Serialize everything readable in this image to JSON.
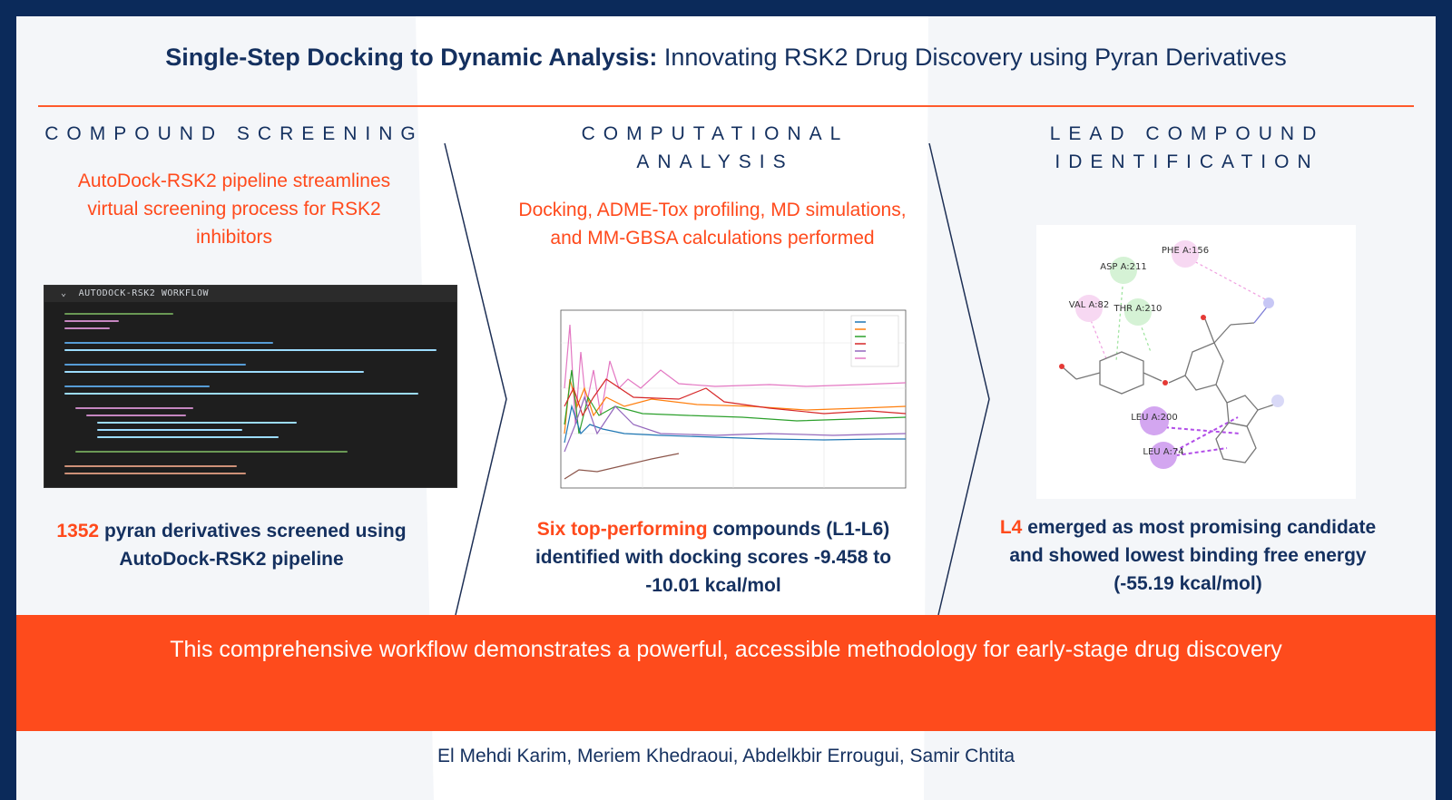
{
  "title": {
    "bold": "Single-Step Docking to Dynamic Analysis:",
    "rest": " Innovating RSK2 Drug Discovery using Pyran Derivatives"
  },
  "columns": [
    {
      "heading": "COMPOUND SCREENING",
      "description": "AutoDock-RSK2 pipeline streamlines virtual screening process for RSK2 inhibitors",
      "result_highlight": "1352",
      "result_rest": " pyran derivatives screened using AutoDock-RSK2 pipeline"
    },
    {
      "heading": "COMPUTATIONAL ANALYSIS",
      "description": "Docking, ADME-Tox profiling, MD simulations, and MM-GBSA calculations performed",
      "result_highlight": "Six top-performing",
      "result_rest": " compounds (L1-L6) identified with docking scores -9.458 to -10.01 kcal/mol"
    },
    {
      "heading": "LEAD COMPOUND IDENTIFICATION",
      "description": "",
      "result_highlight": "L4",
      "result_rest": " emerged as most promising candidate and showed lowest binding free energy (-55.19 kcal/mol)"
    }
  ],
  "code_window": {
    "title": "AUTODOCK-RSK2 WORKFLOW"
  },
  "molecule": {
    "residues": [
      "ASP A:211",
      "PHE A:156",
      "VAL A:82",
      "THR A:210",
      "LEU A:200",
      "LEU A:74"
    ]
  },
  "banner": "This comprehensive workflow demonstrates a powerful, accessible methodology for early-stage drug discovery",
  "authors": "El Mehdi Karim, Meriem Khedraoui, Abdelkbir Errougui, Samir Chtita",
  "colors": {
    "navy": "#14305f",
    "accent_orange": "#ff4a1c",
    "banner": "#fe4b1c"
  }
}
